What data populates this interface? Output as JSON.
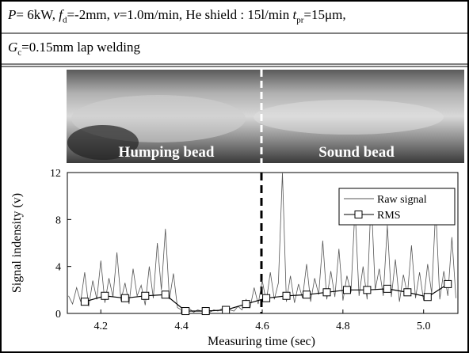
{
  "header": {
    "line1": [
      "P",
      "= 6kW, ",
      "f",
      "d",
      "=-2mm, ",
      "v",
      "=1.0m/min, He shield : 15l/min ",
      "t",
      "pr",
      "=15μm,"
    ],
    "line2": [
      "G",
      "c",
      "=0.15mm lap welding"
    ]
  },
  "photo": {
    "labels": [
      "Humping bead",
      "Sound bead"
    ]
  },
  "chart_data": {
    "type": "line",
    "xlabel": "Measuring time (sec)",
    "ylabel": "Signal indensity (v)",
    "xlim": [
      4.117,
      5.085
    ],
    "ylim": [
      0,
      12
    ],
    "xticks": [
      4.2,
      4.4,
      4.6,
      4.8,
      {
        "value": 5,
        "label": "5.0"
      }
    ],
    "yticks": [
      0,
      4,
      8,
      12
    ],
    "legend": "upper right",
    "series": [
      {
        "name": "Raw signal",
        "color": "#555555",
        "x": [
          4.12,
          4.13,
          4.14,
          4.15,
          4.16,
          4.17,
          4.18,
          4.19,
          4.2,
          4.21,
          4.22,
          4.23,
          4.24,
          4.25,
          4.26,
          4.27,
          4.28,
          4.29,
          4.3,
          4.31,
          4.32,
          4.33,
          4.34,
          4.35,
          4.36,
          4.37,
          4.38,
          4.39,
          4.4,
          4.41,
          4.42,
          4.43,
          4.44,
          4.45,
          4.46,
          4.47,
          4.48,
          4.49,
          4.5,
          4.51,
          4.52,
          4.53,
          4.54,
          4.55,
          4.56,
          4.57,
          4.58,
          4.59,
          4.6,
          4.61,
          4.62,
          4.63,
          4.64,
          4.65,
          4.66,
          4.67,
          4.68,
          4.69,
          4.7,
          4.71,
          4.72,
          4.73,
          4.74,
          4.75,
          4.76,
          4.77,
          4.78,
          4.79,
          4.8,
          4.81,
          4.82,
          4.83,
          4.84,
          4.85,
          4.86,
          4.87,
          4.88,
          4.89,
          4.9,
          4.91,
          4.92,
          4.93,
          4.94,
          4.95,
          4.96,
          4.97,
          4.98,
          4.99,
          5.0,
          5.01,
          5.02,
          5.03,
          5.04,
          5.05,
          5.06,
          5.07,
          5.08
        ],
        "values": [
          1.5,
          0.8,
          2.2,
          1.0,
          3.5,
          0.6,
          2.8,
          1.2,
          4.5,
          0.9,
          3.0,
          1.4,
          5.2,
          1.1,
          2.6,
          0.8,
          3.8,
          1.5,
          2.4,
          0.7,
          4.0,
          1.3,
          6.0,
          2.0,
          7.2,
          1.2,
          3.4,
          0.5,
          0.3,
          0.2,
          0.4,
          0.1,
          0.3,
          0.2,
          0.5,
          0.1,
          0.3,
          0.2,
          0.4,
          0.1,
          0.3,
          0.2,
          0.6,
          0.3,
          1.2,
          0.5,
          2.2,
          0.8,
          2.8,
          1.0,
          3.5,
          1.2,
          2.6,
          12.0,
          1.0,
          3.2,
          0.9,
          2.5,
          1.3,
          4.2,
          1.0,
          3.0,
          1.6,
          6.2,
          1.2,
          3.6,
          1.4,
          5.5,
          1.1,
          3.2,
          1.8,
          9.0,
          1.5,
          4.0,
          1.2,
          10.0,
          2.0,
          3.8,
          1.5,
          7.5,
          1.4,
          4.6,
          1.0,
          3.3,
          1.6,
          5.8,
          1.3,
          3.5,
          1.1,
          4.2,
          1.7,
          9.0,
          1.2,
          3.6,
          1.5,
          6.5,
          1.3
        ]
      },
      {
        "name": "RMS",
        "color": "#000000",
        "marker": "square",
        "x": [
          4.16,
          4.21,
          4.26,
          4.31,
          4.36,
          4.41,
          4.46,
          4.51,
          4.56,
          4.61,
          4.66,
          4.71,
          4.76,
          4.81,
          4.86,
          4.91,
          4.96,
          5.01,
          5.06
        ],
        "values": [
          1.0,
          1.5,
          1.3,
          1.5,
          1.6,
          0.2,
          0.2,
          0.3,
          0.8,
          1.3,
          1.5,
          1.6,
          1.8,
          2.0,
          2.0,
          2.1,
          1.8,
          1.4,
          2.5
        ]
      }
    ]
  }
}
